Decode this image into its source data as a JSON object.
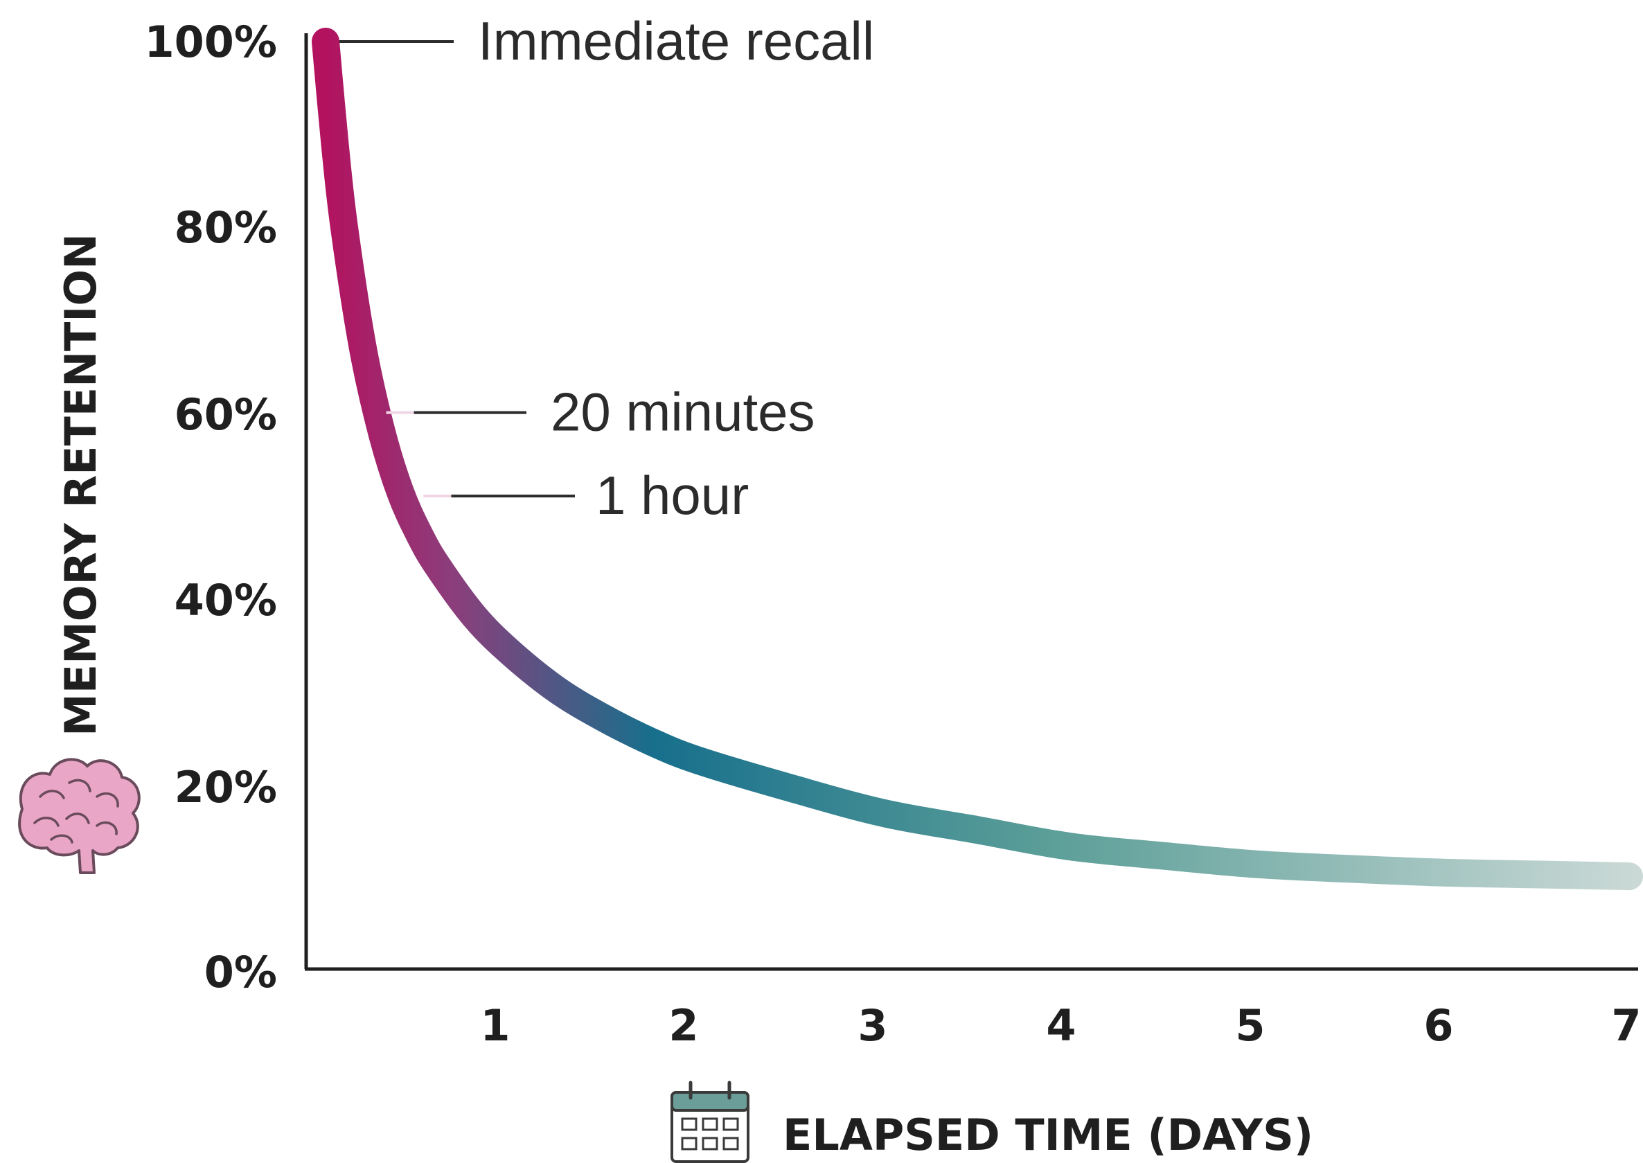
{
  "chart_data": {
    "type": "line",
    "title": "",
    "xlabel": "ELAPSED TIME (DAYS)",
    "ylabel": "MEMORY RETENTION",
    "xlim": [
      0,
      7
    ],
    "ylim": [
      0,
      100
    ],
    "x_ticks": [
      "1",
      "2",
      "3",
      "4",
      "5",
      "6",
      "7"
    ],
    "y_ticks": [
      "100%",
      "80%",
      "60%",
      "40%",
      "20%",
      "0%"
    ],
    "grid": false,
    "x": [
      0,
      0.05,
      0.1,
      0.2,
      0.3,
      0.4,
      0.5,
      0.6,
      0.8,
      1.0,
      1.25,
      1.5,
      1.75,
      2.0,
      2.5,
      3.0,
      3.5,
      4.0,
      4.5,
      5.0,
      5.5,
      6.0,
      6.5,
      7.0
    ],
    "y": [
      100,
      89,
      80,
      67,
      58,
      51.5,
      47,
      43.5,
      38,
      34,
      30,
      27,
      24.5,
      22.5,
      19.5,
      16.8,
      15,
      13.2,
      12.2,
      11.3,
      10.8,
      10.4,
      10.2,
      10
    ],
    "gradient_colors": [
      "#b3125f",
      "#8a3f7c",
      "#176f8c",
      "#5b9e98",
      "#cad9d6"
    ],
    "annotations": [
      {
        "label": "Immediate recall",
        "x": 0,
        "y": 100
      },
      {
        "label": "20 minutes",
        "x": 0.4,
        "y": 60
      },
      {
        "label": "1 hour",
        "x": 0.6,
        "y": 51
      }
    ],
    "icons": {
      "y_axis": "brain-icon",
      "x_axis": "calendar-icon"
    },
    "brain_color": "#e9a6c7",
    "calendar_color": "#6b9e98"
  }
}
